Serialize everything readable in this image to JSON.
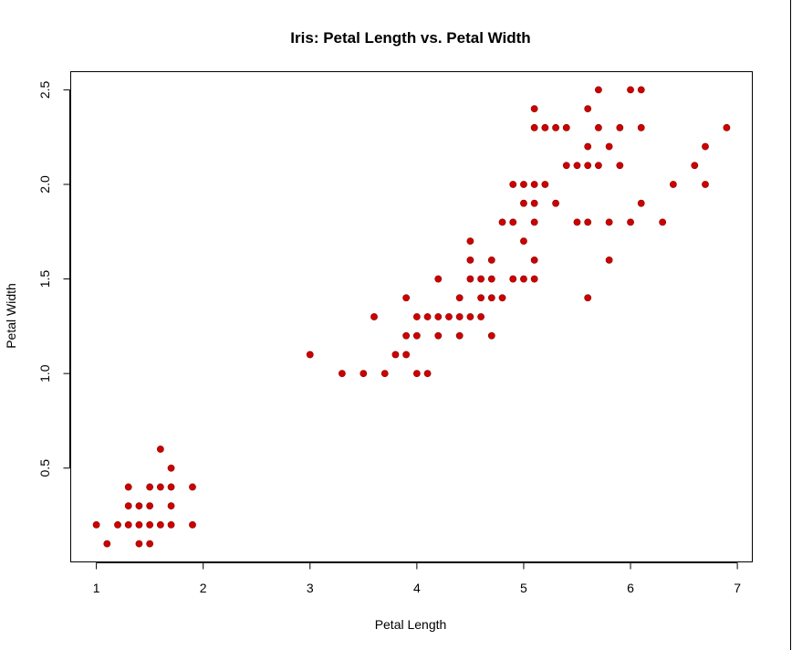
{
  "chart_data": {
    "type": "scatter",
    "title": "Iris: Petal Length vs. Petal Width",
    "xlabel": "Petal Length",
    "ylabel": "Petal Width",
    "xlim": [
      0.76,
      7.14
    ],
    "ylim": [
      0.004,
      2.596
    ],
    "xticks": [
      1,
      2,
      3,
      4,
      5,
      6,
      7
    ],
    "xtick_labels": [
      "1",
      "2",
      "3",
      "4",
      "5",
      "6",
      "7"
    ],
    "yticks": [
      0.5,
      1.0,
      1.5,
      2.0,
      2.5
    ],
    "ytick_labels": [
      "0.5",
      "1.0",
      "1.5",
      "2.0",
      "2.5"
    ],
    "grid": false,
    "point_color": "#cc0000",
    "points": [
      [
        1.0,
        0.2
      ],
      [
        1.1,
        0.1
      ],
      [
        1.2,
        0.2
      ],
      [
        1.3,
        0.2
      ],
      [
        1.3,
        0.3
      ],
      [
        1.3,
        0.4
      ],
      [
        1.4,
        0.1
      ],
      [
        1.4,
        0.2
      ],
      [
        1.4,
        0.3
      ],
      [
        1.5,
        0.1
      ],
      [
        1.5,
        0.2
      ],
      [
        1.5,
        0.3
      ],
      [
        1.5,
        0.4
      ],
      [
        1.6,
        0.2
      ],
      [
        1.6,
        0.4
      ],
      [
        1.6,
        0.6
      ],
      [
        1.7,
        0.2
      ],
      [
        1.7,
        0.3
      ],
      [
        1.7,
        0.4
      ],
      [
        1.7,
        0.5
      ],
      [
        1.9,
        0.2
      ],
      [
        1.9,
        0.4
      ],
      [
        3.0,
        1.1
      ],
      [
        3.3,
        1.0
      ],
      [
        3.5,
        1.0
      ],
      [
        3.6,
        1.3
      ],
      [
        3.7,
        1.0
      ],
      [
        3.8,
        1.1
      ],
      [
        3.9,
        1.1
      ],
      [
        3.9,
        1.2
      ],
      [
        3.9,
        1.4
      ],
      [
        4.0,
        1.0
      ],
      [
        4.0,
        1.2
      ],
      [
        4.0,
        1.3
      ],
      [
        4.1,
        1.0
      ],
      [
        4.1,
        1.3
      ],
      [
        4.2,
        1.2
      ],
      [
        4.2,
        1.3
      ],
      [
        4.2,
        1.5
      ],
      [
        4.3,
        1.3
      ],
      [
        4.4,
        1.2
      ],
      [
        4.4,
        1.3
      ],
      [
        4.4,
        1.4
      ],
      [
        4.5,
        1.3
      ],
      [
        4.5,
        1.5
      ],
      [
        4.5,
        1.6
      ],
      [
        4.5,
        1.7
      ],
      [
        4.6,
        1.3
      ],
      [
        4.6,
        1.4
      ],
      [
        4.6,
        1.5
      ],
      [
        4.7,
        1.2
      ],
      [
        4.7,
        1.4
      ],
      [
        4.7,
        1.5
      ],
      [
        4.7,
        1.6
      ],
      [
        4.8,
        1.4
      ],
      [
        4.8,
        1.8
      ],
      [
        4.9,
        1.5
      ],
      [
        4.9,
        1.8
      ],
      [
        4.9,
        2.0
      ],
      [
        5.0,
        1.5
      ],
      [
        5.0,
        1.7
      ],
      [
        5.0,
        1.9
      ],
      [
        5.0,
        2.0
      ],
      [
        5.1,
        1.5
      ],
      [
        5.1,
        1.6
      ],
      [
        5.1,
        1.8
      ],
      [
        5.1,
        1.9
      ],
      [
        5.1,
        2.0
      ],
      [
        5.1,
        2.3
      ],
      [
        5.1,
        2.4
      ],
      [
        5.2,
        2.0
      ],
      [
        5.2,
        2.3
      ],
      [
        5.3,
        1.9
      ],
      [
        5.3,
        2.3
      ],
      [
        5.4,
        2.1
      ],
      [
        5.4,
        2.3
      ],
      [
        5.5,
        1.8
      ],
      [
        5.5,
        2.1
      ],
      [
        5.6,
        1.4
      ],
      [
        5.6,
        1.8
      ],
      [
        5.6,
        2.1
      ],
      [
        5.6,
        2.2
      ],
      [
        5.6,
        2.4
      ],
      [
        5.7,
        2.1
      ],
      [
        5.7,
        2.3
      ],
      [
        5.7,
        2.5
      ],
      [
        5.8,
        1.6
      ],
      [
        5.8,
        1.8
      ],
      [
        5.8,
        2.2
      ],
      [
        5.9,
        2.1
      ],
      [
        5.9,
        2.3
      ],
      [
        6.0,
        1.8
      ],
      [
        6.0,
        2.5
      ],
      [
        6.1,
        1.9
      ],
      [
        6.1,
        2.3
      ],
      [
        6.1,
        2.5
      ],
      [
        6.3,
        1.8
      ],
      [
        6.4,
        2.0
      ],
      [
        6.6,
        2.1
      ],
      [
        6.7,
        2.0
      ],
      [
        6.7,
        2.2
      ],
      [
        6.9,
        2.3
      ]
    ]
  }
}
